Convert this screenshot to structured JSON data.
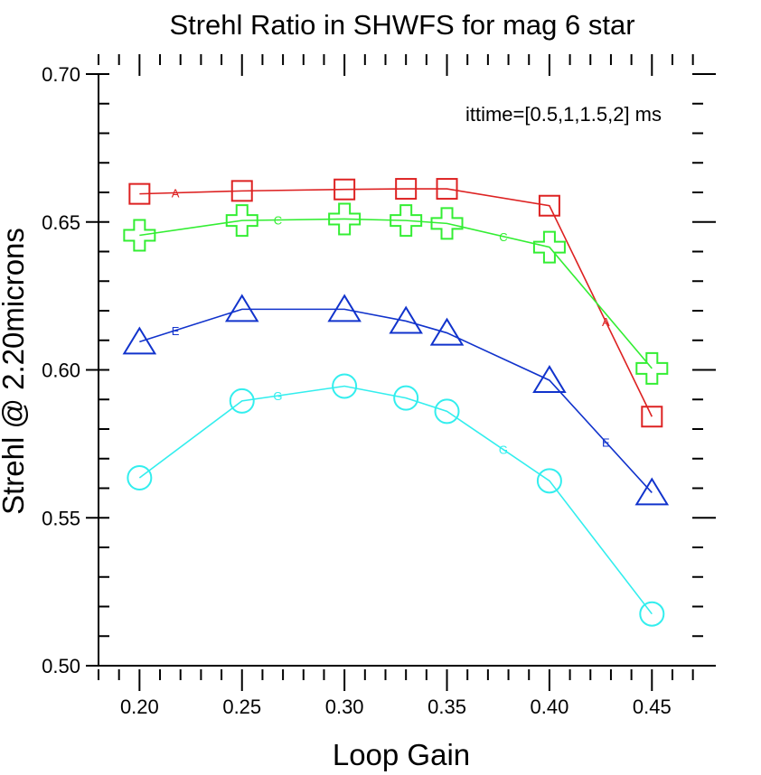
{
  "chart_data": {
    "type": "line",
    "title": "Strehl Ratio in SHWFS for mag 6 star",
    "xlabel": "Loop Gain",
    "ylabel": "Strehl @ 2.20microns",
    "annotation": "ittime=[0.5,1,1.5,2] ms",
    "xlim": [
      0.18,
      0.475
    ],
    "ylim": [
      0.5,
      0.7
    ],
    "x_ticks": [
      "0.20",
      "0.25",
      "0.30",
      "0.35",
      "0.40",
      "0.45"
    ],
    "y_ticks": [
      "0.50",
      "0.55",
      "0.60",
      "0.65",
      "0.70"
    ],
    "grid": false,
    "series": [
      {
        "marker": "square",
        "line_label": "A",
        "color": "#dd2222",
        "x": [
          0.2,
          0.25,
          0.3,
          0.33,
          0.35,
          0.4,
          0.45
        ],
        "y": [
          0.6595,
          0.6605,
          0.661,
          0.6612,
          0.6612,
          0.6555,
          0.5842
        ]
      },
      {
        "marker": "plus",
        "line_label": "C",
        "color": "#33ee33",
        "x": [
          0.2,
          0.25,
          0.3,
          0.33,
          0.35,
          0.4,
          0.45
        ],
        "y": [
          0.6455,
          0.6505,
          0.651,
          0.6505,
          0.6495,
          0.6415,
          0.6005
        ]
      },
      {
        "marker": "triangle",
        "line_label": "E",
        "color": "#1133cc",
        "x": [
          0.2,
          0.25,
          0.3,
          0.33,
          0.35,
          0.4,
          0.45
        ],
        "y": [
          0.6095,
          0.6205,
          0.6205,
          0.6165,
          0.6125,
          0.5965,
          0.5585
        ]
      },
      {
        "marker": "circle",
        "line_label": "G",
        "color": "#33eeee",
        "x": [
          0.2,
          0.25,
          0.3,
          0.33,
          0.35,
          0.4,
          0.45
        ],
        "y": [
          0.5635,
          0.5895,
          0.5945,
          0.5905,
          0.586,
          0.5625,
          0.5175
        ]
      }
    ]
  }
}
